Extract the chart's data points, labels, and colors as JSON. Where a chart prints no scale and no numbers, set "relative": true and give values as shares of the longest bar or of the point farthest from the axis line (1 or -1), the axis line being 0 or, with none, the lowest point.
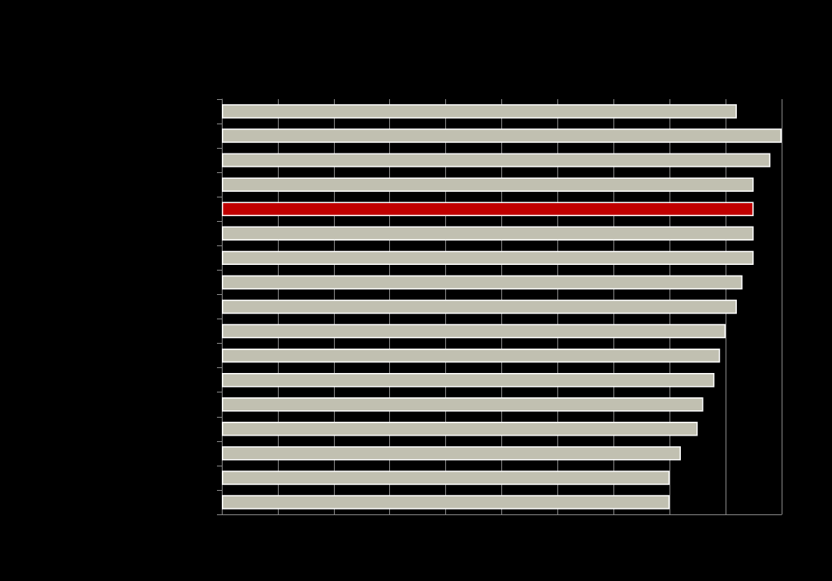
{
  "chart_data": {
    "type": "bar",
    "orientation": "horizontal",
    "relative": true,
    "categories": [
      null,
      null,
      null,
      null,
      null,
      null,
      null,
      null,
      null,
      null,
      null,
      null,
      null,
      null,
      null,
      null,
      null
    ],
    "values": [
      0.92,
      1,
      0.98,
      0.95,
      0.95,
      0.95,
      0.95,
      0.93,
      0.92,
      0.9,
      0.89,
      0.88,
      0.86,
      0.85,
      0.82,
      0.8,
      0.8
    ],
    "colors": [
      "#c1c0b1",
      "#c1c0b1",
      "#c1c0b1",
      "#c1c0b1",
      "#c00000",
      "#c1c0b1",
      "#c1c0b1",
      "#c1c0b1",
      "#c1c0b1",
      "#c1c0b1",
      "#c1c0b1",
      "#c1c0b1",
      "#c1c0b1",
      "#c1c0b1",
      "#c1c0b1",
      "#c1c0b1",
      "#c1c0b1"
    ],
    "grid": "x",
    "tick_labels": false
  }
}
